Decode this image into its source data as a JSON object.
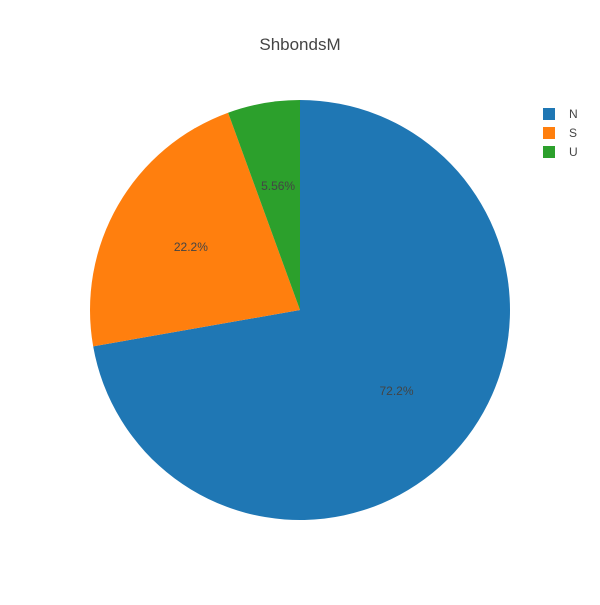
{
  "chart_data": {
    "type": "pie",
    "title": "ShbondsM",
    "labels": [
      "N",
      "S",
      "U"
    ],
    "values": [
      72.2,
      22.2,
      5.56
    ],
    "value_labels": [
      "72.2%",
      "22.2%",
      "5.56%"
    ],
    "colors": [
      "#1f77b4",
      "#ff7f0e",
      "#2ca02c"
    ],
    "direction": "clockwise",
    "start": "top",
    "legend": {
      "position": "top-right",
      "entries": [
        "N",
        "S",
        "U"
      ]
    }
  }
}
